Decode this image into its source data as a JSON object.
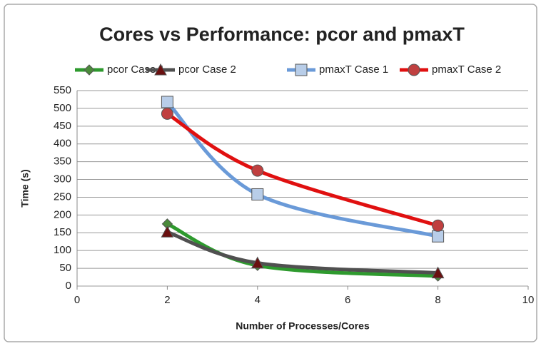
{
  "chart_data": {
    "type": "line",
    "title": "Cores vs Performance: pcor and pmaxT",
    "x_label": "Number of Processes/Cores",
    "y_label": "Time (s)",
    "x": [
      2,
      4,
      8
    ],
    "series": [
      {
        "name": "pcor Case 1",
        "color": "#2e9a2e",
        "marker": "diamond",
        "marker_color": "#4a8a3a",
        "values": [
          175,
          58,
          28
        ]
      },
      {
        "name": "pcor Case 2",
        "color": "#505050",
        "marker": "triangle",
        "marker_color": "#6a1010",
        "values": [
          152,
          65,
          37
        ]
      },
      {
        "name": "pmaxT Case 1",
        "color": "#6a9ad8",
        "marker": "square",
        "marker_color": "#b8cde8",
        "values": [
          518,
          258,
          140
        ]
      },
      {
        "name": "pmaxT Case 2",
        "color": "#e01010",
        "marker": "circle",
        "marker_color": "#c04040",
        "values": [
          485,
          325,
          170
        ]
      }
    ],
    "xlim": [
      0,
      10
    ],
    "xticks": [
      0,
      2,
      4,
      6,
      8,
      10
    ],
    "ylim": [
      0,
      550
    ],
    "yticks": [
      0,
      50,
      100,
      150,
      200,
      250,
      300,
      350,
      400,
      450,
      500,
      550
    ],
    "grid": true,
    "legend": "top"
  }
}
